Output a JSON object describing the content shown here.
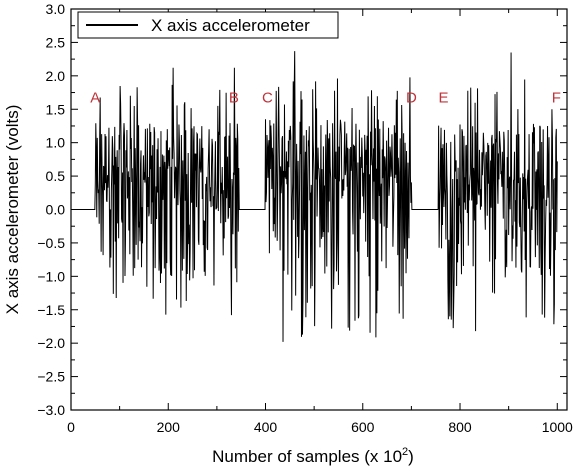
{
  "chart_data": {
    "type": "line",
    "title": "",
    "xlabel": "Number of samples (x 10",
    "xlabel_superscript": "2",
    "xlabel_suffix": ")",
    "ylabel": "X axis accelerometer (volts)",
    "xlim": [
      0,
      1020
    ],
    "ylim": [
      -3.0,
      3.0
    ],
    "x_ticks": [
      0,
      200,
      400,
      600,
      800,
      1000
    ],
    "x_tick_labels": [
      "0",
      "200",
      "400",
      "600",
      "800",
      "1000"
    ],
    "y_ticks": [
      -3.0,
      -2.5,
      -2.0,
      -1.5,
      -1.0,
      -0.5,
      0.0,
      0.5,
      1.0,
      1.5,
      2.0,
      2.5,
      3.0
    ],
    "y_tick_labels": [
      "−3.0",
      "−2.5",
      "−2.0",
      "−1.5",
      "−1.0",
      "−0.5",
      "0.0",
      "0.5",
      "1.0",
      "1.5",
      "2.0",
      "2.5",
      "3.0"
    ],
    "grid": false,
    "legend_position": "top-left",
    "series": [
      {
        "name": "X axis accelerometer",
        "color": "#000000",
        "active_segments": [
          {
            "start": 50,
            "end": 345,
            "mean": 0.45,
            "peak_high": 2.12,
            "peak_low": -1.58
          },
          {
            "start": 400,
            "end": 700,
            "mean": 0.55,
            "peak_high": 2.37,
            "peak_low": -1.98
          },
          {
            "start": 755,
            "end": 1000,
            "mean": 0.45,
            "peak_high": 2.35,
            "peak_low": -1.82
          }
        ],
        "idle_value": 0.0
      }
    ],
    "annotations": [
      {
        "text": "A",
        "x": 50,
        "y": 1.6
      },
      {
        "text": "B",
        "x": 335,
        "y": 1.6
      },
      {
        "text": "C",
        "x": 404,
        "y": 1.6
      },
      {
        "text": "D",
        "x": 700,
        "y": 1.6
      },
      {
        "text": "E",
        "x": 766,
        "y": 1.6
      },
      {
        "text": "F",
        "x": 998,
        "y": 1.6
      }
    ]
  }
}
